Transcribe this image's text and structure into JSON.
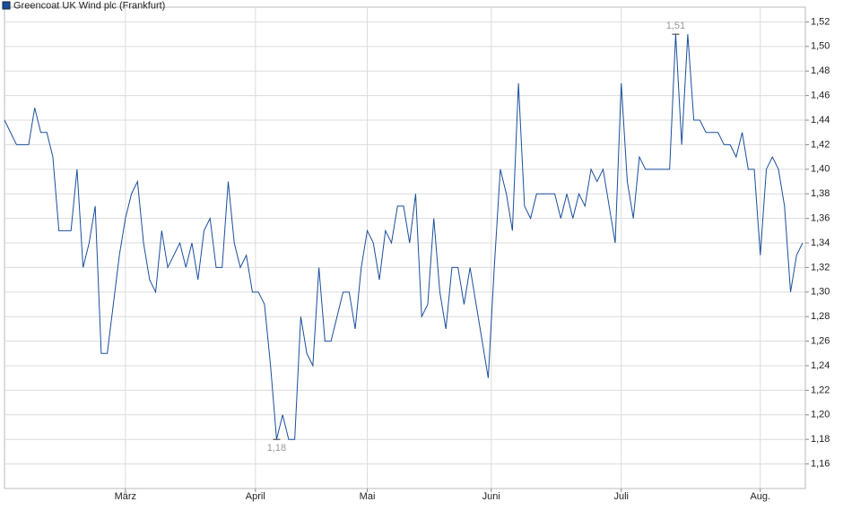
{
  "chart_data": {
    "type": "line",
    "series": [
      {
        "name": "Greencoat UK Wind plc (Frankfurt)",
        "color": "#1a4f9c",
        "values": [
          1.44,
          1.43,
          1.42,
          1.42,
          1.42,
          1.45,
          1.43,
          1.43,
          1.41,
          1.35,
          1.35,
          1.35,
          1.4,
          1.32,
          1.34,
          1.37,
          1.25,
          1.25,
          1.29,
          1.33,
          1.36,
          1.38,
          1.39,
          1.34,
          1.31,
          1.3,
          1.35,
          1.32,
          1.33,
          1.34,
          1.32,
          1.34,
          1.31,
          1.35,
          1.36,
          1.32,
          1.32,
          1.39,
          1.34,
          1.32,
          1.33,
          1.3,
          1.3,
          1.29,
          1.24,
          1.18,
          1.2,
          1.18,
          1.18,
          1.28,
          1.25,
          1.24,
          1.32,
          1.26,
          1.26,
          1.28,
          1.3,
          1.3,
          1.27,
          1.32,
          1.35,
          1.34,
          1.31,
          1.35,
          1.34,
          1.37,
          1.37,
          1.34,
          1.38,
          1.28,
          1.29,
          1.36,
          1.3,
          1.27,
          1.32,
          1.32,
          1.29,
          1.32,
          1.29,
          1.26,
          1.23,
          1.32,
          1.4,
          1.38,
          1.35,
          1.47,
          1.37,
          1.36,
          1.38,
          1.38,
          1.38,
          1.38,
          1.36,
          1.38,
          1.36,
          1.38,
          1.37,
          1.4,
          1.39,
          1.4,
          1.37,
          1.34,
          1.47,
          1.39,
          1.36,
          1.41,
          1.4,
          1.4,
          1.4,
          1.4,
          1.4,
          1.51,
          1.42,
          1.51,
          1.44,
          1.44,
          1.43,
          1.43,
          1.43,
          1.42,
          1.42,
          1.41,
          1.43,
          1.4,
          1.4,
          1.33,
          1.4,
          1.41,
          1.4,
          1.37,
          1.3,
          1.33,
          1.34
        ]
      }
    ],
    "xlim": [
      0,
      132
    ],
    "xticks": [
      {
        "value": 20,
        "label": "März"
      },
      {
        "value": 41.5,
        "label": "April"
      },
      {
        "value": 60,
        "label": "Mai"
      },
      {
        "value": 80.5,
        "label": "Juni"
      },
      {
        "value": 102,
        "label": "Juli"
      },
      {
        "value": 125,
        "label": "Aug."
      }
    ],
    "ylim": [
      1.14,
      1.532
    ],
    "yticks": [
      {
        "value": 1.16,
        "label": "1,16"
      },
      {
        "value": 1.18,
        "label": "1,18"
      },
      {
        "value": 1.2,
        "label": "1,20"
      },
      {
        "value": 1.22,
        "label": "1,22"
      },
      {
        "value": 1.24,
        "label": "1,24"
      },
      {
        "value": 1.26,
        "label": "1,26"
      },
      {
        "value": 1.28,
        "label": "1,28"
      },
      {
        "value": 1.3,
        "label": "1,30"
      },
      {
        "value": 1.32,
        "label": "1,32"
      },
      {
        "value": 1.34,
        "label": "1,34"
      },
      {
        "value": 1.36,
        "label": "1,36"
      },
      {
        "value": 1.38,
        "label": "1,38"
      },
      {
        "value": 1.4,
        "label": "1,40"
      },
      {
        "value": 1.42,
        "label": "1,42"
      },
      {
        "value": 1.44,
        "label": "1,44"
      },
      {
        "value": 1.46,
        "label": "1,46"
      },
      {
        "value": 1.48,
        "label": "1,48"
      },
      {
        "value": 1.5,
        "label": "1,50"
      },
      {
        "value": 1.52,
        "label": "1,52"
      }
    ],
    "annotations": [
      {
        "value": 1.51,
        "label": "1,51"
      },
      {
        "value": 1.18,
        "label": "1,18"
      }
    ],
    "grid": true
  }
}
